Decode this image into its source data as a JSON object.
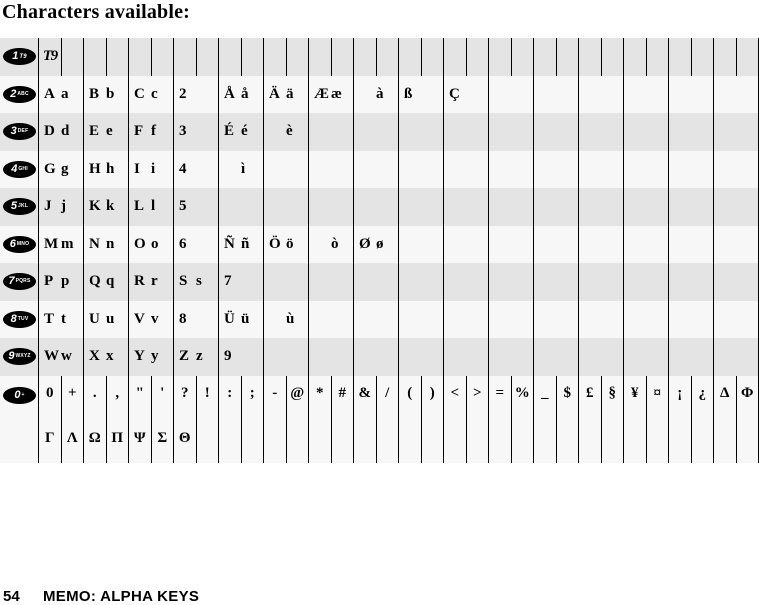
{
  "title": "Characters available:",
  "footer": {
    "page_number": "54",
    "label": "MEMO: ALPHA KEYS"
  },
  "colors": {
    "band_dark": "#e4e4e4",
    "band_light": "#f7f7f7",
    "grid_line": "#000000",
    "key_fill": "#000000",
    "key_text": "#ffffff"
  },
  "table": {
    "narrow_cols": 32,
    "wide_cols": 16,
    "rows": [
      {
        "id": "key-1",
        "band": "dark",
        "layout": "narrow",
        "key": {
          "digit": "1",
          "sub": "T9"
        },
        "cells": [
          "T9"
        ],
        "t9_logo_cell": 0
      },
      {
        "id": "key-2",
        "band": "light",
        "layout": "wide",
        "key": {
          "digit": "2",
          "sub": "ABC"
        },
        "cells": [
          [
            "A",
            "a"
          ],
          [
            "B",
            "b"
          ],
          [
            "C",
            "c"
          ],
          [
            "2",
            ""
          ],
          [
            "Å",
            "å"
          ],
          [
            "Ä",
            "ä"
          ],
          [
            "Æ",
            "æ"
          ],
          [
            "",
            "à"
          ],
          [
            "ß",
            ""
          ],
          [
            "Ç",
            ""
          ]
        ]
      },
      {
        "id": "key-3",
        "band": "dark",
        "layout": "wide",
        "key": {
          "digit": "3",
          "sub": "DEF"
        },
        "cells": [
          [
            "D",
            "d"
          ],
          [
            "E",
            "e"
          ],
          [
            "F",
            "f"
          ],
          [
            "3",
            ""
          ],
          [
            "É",
            "é"
          ],
          [
            "",
            "è"
          ]
        ]
      },
      {
        "id": "key-4",
        "band": "light",
        "layout": "wide",
        "key": {
          "digit": "4",
          "sub": "GHI"
        },
        "cells": [
          [
            "G",
            "g"
          ],
          [
            "H",
            "h"
          ],
          [
            "I",
            "i"
          ],
          [
            "4",
            ""
          ],
          [
            "",
            "ì"
          ]
        ]
      },
      {
        "id": "key-5",
        "band": "dark",
        "layout": "wide",
        "key": {
          "digit": "5",
          "sub": "JKL"
        },
        "cells": [
          [
            "J",
            "j"
          ],
          [
            "K",
            "k"
          ],
          [
            "L",
            "l"
          ],
          [
            "5",
            ""
          ]
        ]
      },
      {
        "id": "key-6",
        "band": "light",
        "layout": "wide",
        "key": {
          "digit": "6",
          "sub": "MNO"
        },
        "cells": [
          [
            "M",
            "m"
          ],
          [
            "N",
            "n"
          ],
          [
            "O",
            "o"
          ],
          [
            "6",
            ""
          ],
          [
            "Ñ",
            "ñ"
          ],
          [
            "Ö",
            "ö"
          ],
          [
            "",
            "ò"
          ],
          [
            "Ø",
            "ø"
          ]
        ]
      },
      {
        "id": "key-7",
        "band": "dark",
        "layout": "wide",
        "key": {
          "digit": "7",
          "sub": "PQRS"
        },
        "cells": [
          [
            "P",
            "p"
          ],
          [
            "Q",
            "q"
          ],
          [
            "R",
            "r"
          ],
          [
            "S",
            "s"
          ],
          [
            "7",
            ""
          ]
        ]
      },
      {
        "id": "key-8",
        "band": "light",
        "layout": "wide",
        "key": {
          "digit": "8",
          "sub": "TUV"
        },
        "cells": [
          [
            "T",
            "t"
          ],
          [
            "U",
            "u"
          ],
          [
            "V",
            "v"
          ],
          [
            "8",
            ""
          ],
          [
            "Ü",
            "ü"
          ],
          [
            "",
            "ù"
          ]
        ]
      },
      {
        "id": "key-9",
        "band": "dark",
        "layout": "wide",
        "key": {
          "digit": "9",
          "sub": "WXYZ"
        },
        "cells": [
          [
            "W",
            "w"
          ],
          [
            "X",
            "x"
          ],
          [
            "Y",
            "y"
          ],
          [
            "Z",
            "z"
          ],
          [
            "9",
            ""
          ]
        ]
      },
      {
        "id": "key-0",
        "band": "light",
        "layout": "narrow",
        "double": true,
        "key": {
          "digit": "0",
          "sub": "+"
        },
        "line1": [
          "0",
          "+",
          ".",
          ",",
          "\"",
          "'",
          "?",
          "!",
          ":",
          ";",
          "-",
          "@",
          "*",
          "#",
          "&",
          "/",
          "(",
          ")",
          "<",
          ">",
          "=",
          "%",
          "_",
          "$",
          "£",
          "§",
          "¥",
          "¤",
          "¡",
          "¿",
          "Δ",
          "Φ"
        ],
        "line2": [
          "Γ",
          "Λ",
          "Ω",
          "Π",
          "Ψ",
          "Σ",
          "Θ"
        ]
      }
    ]
  }
}
